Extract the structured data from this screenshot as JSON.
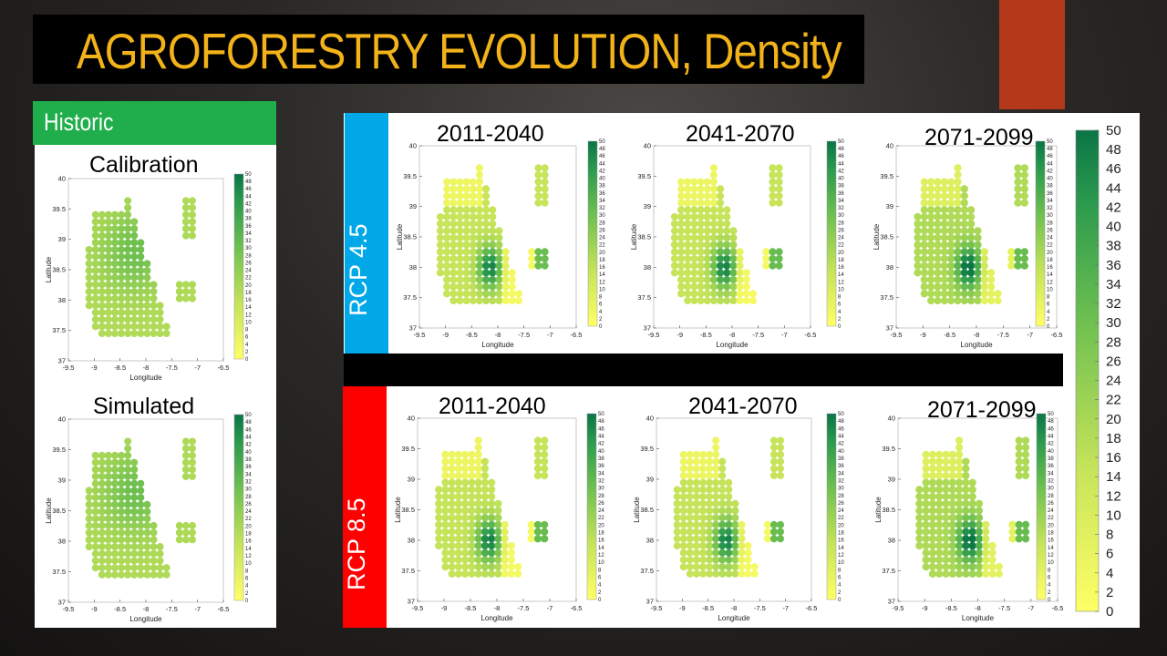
{
  "slide_title": "AGROFORESTRY EVOLUTION, Density",
  "historic": {
    "label": "Historic",
    "maps": [
      "Calibration",
      "Simulated"
    ]
  },
  "rcp45": {
    "label": "RCP 4.5",
    "periods": [
      "2011-2040",
      "2041-2070",
      "2071-2099"
    ]
  },
  "rcp85": {
    "label": "RCP 8.5",
    "periods": [
      "2011-2040",
      "2041-2070",
      "2071-2099"
    ]
  },
  "colors": {
    "title": "#f2b21a",
    "historic_tag": "#1fae4b",
    "rcp45_tag": "#00a8e8",
    "rcp85_tag": "#ff0000",
    "accent": "#b3391a"
  },
  "chart_data": {
    "type": "scatter",
    "xlabel": "Longitude",
    "ylabel": "Latitude",
    "xlim": [
      -9.5,
      -6.5
    ],
    "ylim": [
      37,
      40
    ],
    "xticks": [
      "-9.5",
      "-9",
      "-8.5",
      "-8",
      "-7.5",
      "-7",
      "-6.5"
    ],
    "yticks": [
      "37",
      "37.5",
      "38",
      "38.5",
      "39",
      "39.5",
      "40"
    ],
    "colorbar_ticks": [
      "0",
      "2",
      "4",
      "6",
      "8",
      "10",
      "12",
      "14",
      "16",
      "18",
      "20",
      "22",
      "24",
      "26",
      "28",
      "30",
      "32",
      "34",
      "36",
      "38",
      "40",
      "42",
      "44",
      "46",
      "48",
      "50"
    ],
    "colorbar_range": [
      0,
      50
    ],
    "big_colorbar_ticks": [
      "0",
      "2",
      "4",
      "6",
      "8",
      "10",
      "12",
      "14",
      "16",
      "18",
      "20",
      "22",
      "24",
      "26",
      "28",
      "30",
      "32",
      "34",
      "36",
      "38",
      "40",
      "42",
      "44",
      "46",
      "48",
      "50"
    ]
  }
}
